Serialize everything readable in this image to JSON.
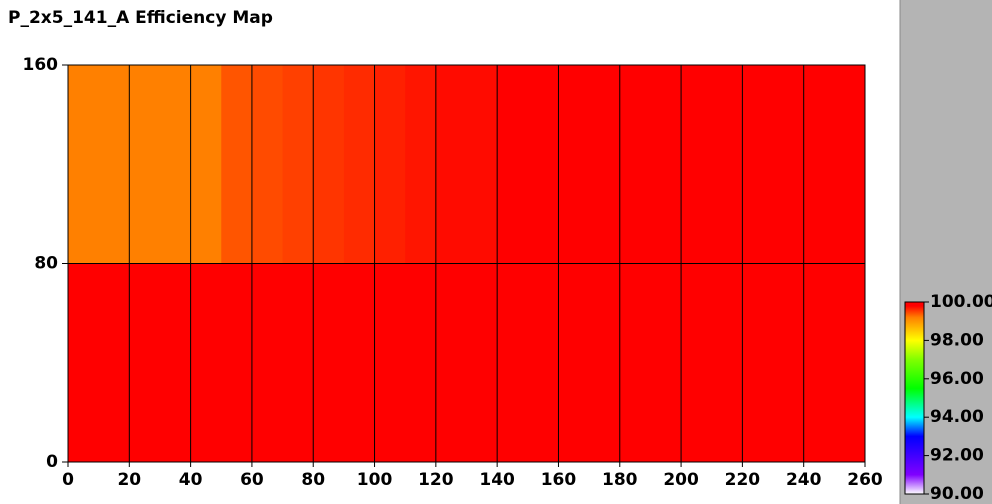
{
  "chart_data": {
    "type": "heatmap",
    "title": "P_2x5_141_A Efficiency Map",
    "xbins": [
      0,
      10,
      20,
      30,
      40,
      50,
      60,
      70,
      80,
      90,
      100,
      110,
      120,
      130,
      140,
      150,
      160,
      170,
      180,
      190,
      200,
      210,
      220,
      230,
      240,
      250,
      260
    ],
    "ybins": [
      0,
      80,
      160
    ],
    "z": [
      [
        99.9,
        99.9,
        99.9,
        99.9,
        99.9,
        99.9,
        99.9,
        99.9,
        99.9,
        99.9,
        99.9,
        99.9,
        99.9,
        99.9,
        99.9,
        99.9,
        99.9,
        99.9,
        99.9,
        99.9,
        99.9,
        99.9,
        99.9,
        99.9,
        99.9,
        99.9
      ],
      [
        99.2,
        99.2,
        99.2,
        99.2,
        99.2,
        99.4,
        99.45,
        99.5,
        99.55,
        99.6,
        99.65,
        99.7,
        99.75,
        99.75,
        99.8,
        99.8,
        99.85,
        99.85,
        99.9,
        99.9,
        99.9,
        99.9,
        99.9,
        99.9,
        99.9,
        99.9
      ]
    ],
    "xlim": [
      0,
      260
    ],
    "xticks": [
      0,
      20,
      40,
      60,
      80,
      100,
      120,
      140,
      160,
      180,
      200,
      220,
      240,
      260
    ],
    "ylim": [
      0,
      160
    ],
    "yticks": [
      0,
      80,
      160
    ],
    "grid": true,
    "colorscale": [
      [
        90,
        "#ffffff"
      ],
      [
        91,
        "#8000ff"
      ],
      [
        92,
        "#4000ff"
      ],
      [
        93,
        "#0000ff"
      ],
      [
        94,
        "#00ffff"
      ],
      [
        95.5,
        "#00ff00"
      ],
      [
        97,
        "#80ff00"
      ],
      [
        98,
        "#ffff00"
      ],
      [
        99.2,
        "#ff8000"
      ],
      [
        99.8,
        "#ff0000"
      ],
      [
        99.97,
        "#ff0000"
      ],
      [
        100,
        "#000000"
      ]
    ],
    "clim": [
      90,
      100
    ],
    "cticks": [
      {
        "value": 90,
        "label": "90.00"
      },
      {
        "value": 92,
        "label": "92.00"
      },
      {
        "value": 94,
        "label": "94.00"
      },
      {
        "value": 96,
        "label": "96.00"
      },
      {
        "value": 98,
        "label": "98.00"
      },
      {
        "value": 100,
        "label": "100.00"
      }
    ]
  }
}
